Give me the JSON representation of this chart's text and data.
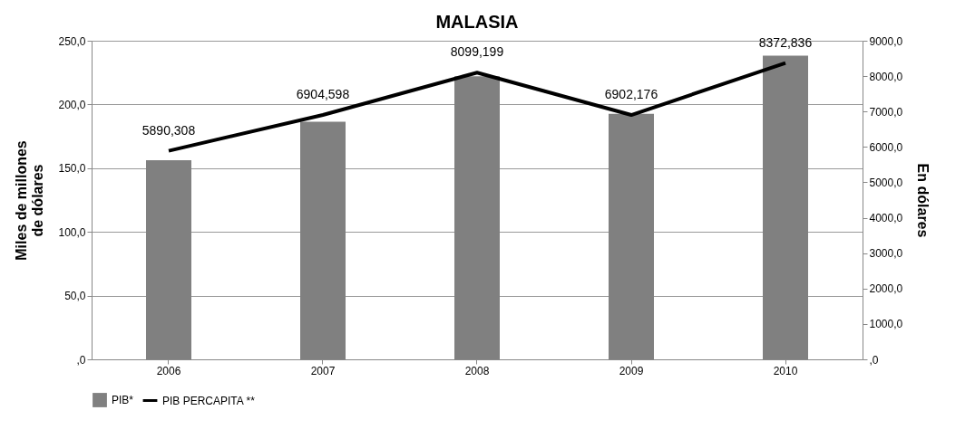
{
  "chart_data": {
    "type": "bar",
    "title": "MALASIA",
    "ylabel": "Miles de millones de dólares",
    "y2label": "En  dólares",
    "categories": [
      "2006",
      "2007",
      "2008",
      "2009",
      "2010"
    ],
    "series": [
      {
        "name": "PIB*",
        "color": "#808080",
        "values": [
          156.3,
          186.4,
          222.2,
          192.6,
          238.2
        ]
      },
      {
        "name": "PIB PERCAPITA **",
        "type": "line",
        "axis": "y2",
        "color": "#000000",
        "values": [
          5890.308,
          6904.598,
          8099.199,
          6902.176,
          8372.836
        ],
        "value_labels": [
          "5890,308",
          "6904,598",
          "8099,199",
          "6902,176",
          "8372,836"
        ]
      }
    ],
    "ylim": [
      0,
      250
    ],
    "yticks": [
      {
        "value": 0,
        "label": ",0"
      },
      {
        "value": 50,
        "label": "50,0"
      },
      {
        "value": 100,
        "label": "100,0"
      },
      {
        "value": 150,
        "label": "150,0"
      },
      {
        "value": 200,
        "label": "200,0"
      },
      {
        "value": 250,
        "label": "250,0"
      }
    ],
    "y2lim": [
      0,
      9000
    ],
    "y2ticks": [
      {
        "value": 0,
        "label": ",0"
      },
      {
        "value": 1000,
        "label": "1000,0"
      },
      {
        "value": 2000,
        "label": "2000,0"
      },
      {
        "value": 3000,
        "label": "3000,0"
      },
      {
        "value": 4000,
        "label": "4000,0"
      },
      {
        "value": 5000,
        "label": "5000,0"
      },
      {
        "value": 6000,
        "label": "6000,0"
      },
      {
        "value": 7000,
        "label": "7000,0"
      },
      {
        "value": 8000,
        "label": "8000,0"
      },
      {
        "value": 9000,
        "label": "9000,0"
      }
    ],
    "grid": "y",
    "legend": "bottom",
    "marker": "none",
    "line_style": "solid"
  }
}
